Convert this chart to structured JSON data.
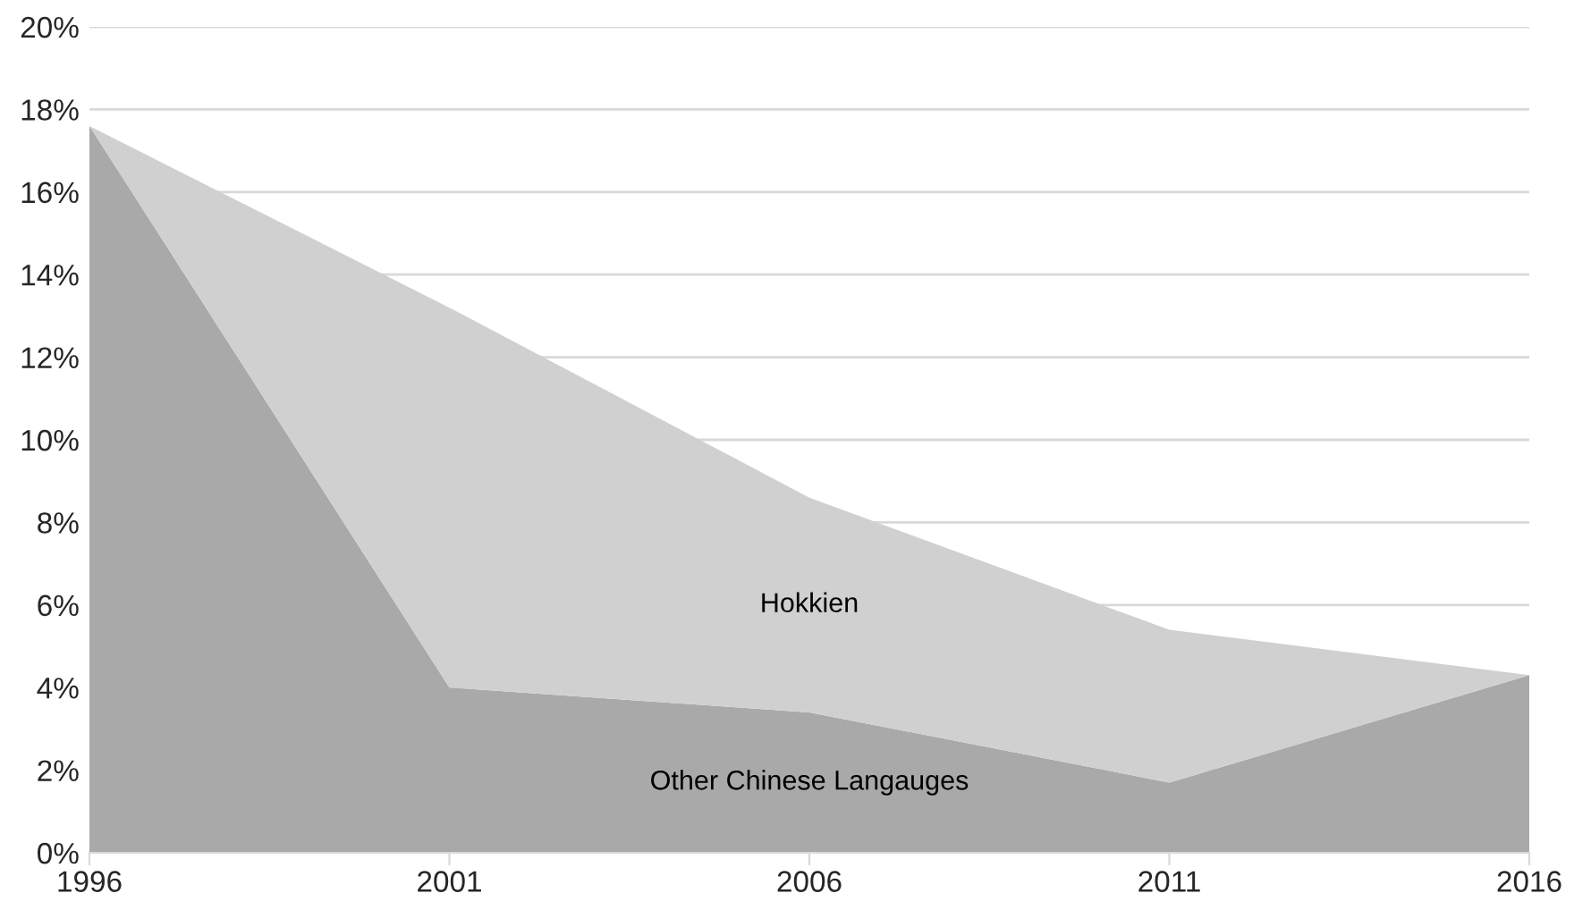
{
  "chart_data": {
    "type": "area",
    "stacked": true,
    "categories": [
      "1996",
      "2001",
      "2006",
      "2011",
      "2016"
    ],
    "series": [
      {
        "name": "Other Chinese Langauges",
        "color": "#a9a9a9",
        "values": [
          17.6,
          4.0,
          3.4,
          1.7,
          4.3
        ]
      },
      {
        "name": "Hokkien",
        "color": "#cfd0cf",
        "values": [
          0,
          9.2,
          5.2,
          3.7,
          0
        ]
      }
    ],
    "ylim": [
      0,
      20
    ],
    "yticks": [
      {
        "value": 0,
        "label": "0%"
      },
      {
        "value": 2,
        "label": "2%"
      },
      {
        "value": 4,
        "label": "4%"
      },
      {
        "value": 6,
        "label": "6%"
      },
      {
        "value": 8,
        "label": "8%"
      },
      {
        "value": 10,
        "label": "10%"
      },
      {
        "value": 12,
        "label": "12%"
      },
      {
        "value": 14,
        "label": "14%"
      },
      {
        "value": 16,
        "label": "16%"
      },
      {
        "value": 18,
        "label": "18%"
      },
      {
        "value": 20,
        "label": "20%"
      }
    ],
    "grid": "y",
    "legend": false
  }
}
